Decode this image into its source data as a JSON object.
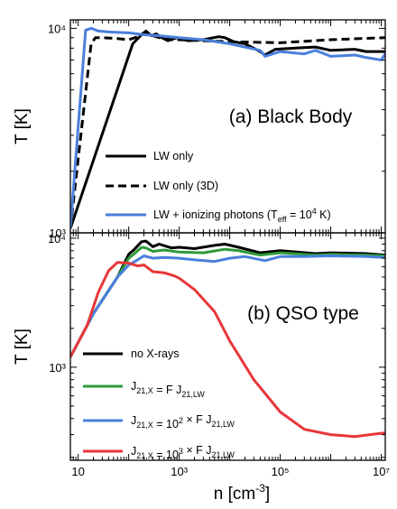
{
  "chart_data": [
    {
      "panel": "a",
      "type": "line",
      "title": "(a) Black Body",
      "xlabel": "n [cm-3]",
      "ylabel": "T [K]",
      "x_scale": "log",
      "y_scale": "log",
      "xlim": [
        7,
        12000000
      ],
      "ylim": [
        1000,
        11000
      ],
      "x_ticks": [
        10,
        1000,
        100000,
        10000000
      ],
      "x_tick_labels": [
        "10",
        "10³",
        "10⁵",
        "10⁷"
      ],
      "y_ticks": [
        1000,
        10000
      ],
      "y_tick_labels": [
        "10³",
        "10⁴"
      ],
      "series": [
        {
          "name": "LW only",
          "color": "#000000",
          "style": "solid",
          "points": [
            [
              7,
              1050
            ],
            [
              120,
              8400
            ],
            [
              180,
              9300
            ],
            [
              220,
              9700
            ],
            [
              280,
              9200
            ],
            [
              350,
              9400
            ],
            [
              450,
              9000
            ],
            [
              600,
              8700
            ],
            [
              900,
              9000
            ],
            [
              1500,
              8700
            ],
            [
              3000,
              8800
            ],
            [
              6000,
              9100
            ],
            [
              8000,
              9000
            ],
            [
              12000,
              8600
            ],
            [
              20000,
              8400
            ],
            [
              40000,
              7700
            ],
            [
              50000,
              7400
            ],
            [
              80000,
              7900
            ],
            [
              200000,
              8000
            ],
            [
              500000,
              8100
            ],
            [
              1000000,
              7800
            ],
            [
              3000000,
              7900
            ],
            [
              5000000,
              7700
            ],
            [
              10000000,
              7700
            ],
            [
              12000000,
              7700
            ]
          ]
        },
        {
          "name": "LW only (3D)",
          "color": "#000000",
          "style": "dashed",
          "points": [
            [
              7,
              1050
            ],
            [
              18,
              8400
            ],
            [
              22,
              9000
            ],
            [
              30,
              9000
            ],
            [
              60,
              8900
            ],
            [
              100,
              8800
            ],
            [
              150,
              9100
            ],
            [
              200,
              9500
            ],
            [
              260,
              9300
            ],
            [
              400,
              9000
            ],
            [
              700,
              8800
            ],
            [
              1000,
              8800
            ],
            [
              3000,
              8700
            ],
            [
              10000,
              8600
            ],
            [
              100000,
              8500
            ],
            [
              1000000,
              8800
            ],
            [
              12000000,
              9000
            ]
          ]
        },
        {
          "name": "LW + ionizing photons (Teff = 10⁴ K)",
          "color": "#4a7fdc",
          "style": "solid",
          "points": [
            [
              7,
              1050
            ],
            [
              14,
              9800
            ],
            [
              18,
              10000
            ],
            [
              25,
              9700
            ],
            [
              40,
              9600
            ],
            [
              100,
              9500
            ],
            [
              200,
              9300
            ],
            [
              400,
              9200
            ],
            [
              1000,
              9000
            ],
            [
              3000,
              8800
            ],
            [
              10000,
              8400
            ],
            [
              40000,
              7800
            ],
            [
              50000,
              7300
            ],
            [
              100000,
              7700
            ],
            [
              300000,
              7500
            ],
            [
              500000,
              7800
            ],
            [
              1000000,
              7300
            ],
            [
              3000000,
              7400
            ],
            [
              5000000,
              7200
            ],
            [
              10000000,
              7000
            ],
            [
              12000000,
              7500
            ]
          ]
        }
      ],
      "legend": [
        {
          "label": "LW only",
          "color": "#000000",
          "style": "solid"
        },
        {
          "label": "LW only (3D)",
          "color": "#000000",
          "style": "dashed"
        },
        {
          "label": "LW + ionizing photons (T",
          "label_sub": "eff",
          "label_mid": " = 10",
          "label_sup": "4",
          "label_end": " K)",
          "color": "#4a7fdc",
          "style": "solid"
        }
      ]
    },
    {
      "panel": "b",
      "type": "line",
      "title": "(b) QSO type",
      "xlabel": "n [cm-3]",
      "ylabel": "T [K]",
      "x_scale": "log",
      "y_scale": "log",
      "xlim": [
        7,
        12000000
      ],
      "ylim": [
        190,
        11000
      ],
      "x_ticks": [
        10,
        1000,
        100000,
        10000000
      ],
      "x_tick_labels": [
        "10",
        "10³",
        "10⁵",
        "10⁷"
      ],
      "y_ticks": [
        1000,
        10000
      ],
      "y_tick_labels": [
        "10³",
        "10⁴"
      ],
      "series": [
        {
          "name": "no X-rays",
          "color": "#000000",
          "points": [
            [
              7,
              1200
            ],
            [
              20,
              2600
            ],
            [
              60,
              5000
            ],
            [
              100,
              7500
            ],
            [
              130,
              8200
            ],
            [
              180,
              9400
            ],
            [
              220,
              9500
            ],
            [
              300,
              8600
            ],
            [
              400,
              9000
            ],
            [
              700,
              8400
            ],
            [
              1000,
              8500
            ],
            [
              2000,
              8300
            ],
            [
              5000,
              8800
            ],
            [
              8000,
              9000
            ],
            [
              15000,
              8500
            ],
            [
              40000,
              7700
            ],
            [
              100000,
              8000
            ],
            [
              500000,
              7600
            ],
            [
              1000000,
              7700
            ],
            [
              5000000,
              7600
            ],
            [
              12000000,
              7400
            ]
          ]
        },
        {
          "name": "J21,X = F J21,LW",
          "color": "#2e9a3a",
          "points": [
            [
              7,
              1200
            ],
            [
              20,
              2600
            ],
            [
              60,
              5000
            ],
            [
              100,
              7000
            ],
            [
              130,
              7600
            ],
            [
              180,
              8500
            ],
            [
              220,
              8400
            ],
            [
              300,
              7900
            ],
            [
              500,
              8100
            ],
            [
              1000,
              7800
            ],
            [
              3000,
              7700
            ],
            [
              8000,
              8200
            ],
            [
              15000,
              8000
            ],
            [
              40000,
              7400
            ],
            [
              100000,
              7700
            ],
            [
              500000,
              7400
            ],
            [
              1000000,
              7500
            ],
            [
              5000000,
              7400
            ],
            [
              12000000,
              7300
            ]
          ]
        },
        {
          "name": "J21,X = 10² × F J21,LW",
          "color": "#4a7fdc",
          "points": [
            [
              7,
              1200
            ],
            [
              20,
              2600
            ],
            [
              60,
              5000
            ],
            [
              100,
              6200
            ],
            [
              150,
              6800
            ],
            [
              200,
              7300
            ],
            [
              300,
              7000
            ],
            [
              500,
              7100
            ],
            [
              1000,
              7000
            ],
            [
              2000,
              6800
            ],
            [
              5000,
              6600
            ],
            [
              10000,
              7000
            ],
            [
              20000,
              7200
            ],
            [
              50000,
              6700
            ],
            [
              100000,
              7200
            ],
            [
              300000,
              7200
            ],
            [
              1000000,
              7300
            ],
            [
              5000000,
              7200
            ],
            [
              12000000,
              7100
            ]
          ]
        },
        {
          "name": "J21,X = 10³ × F J21,LW",
          "color": "#e8373a",
          "points": [
            [
              7,
              1200
            ],
            [
              15,
              2100
            ],
            [
              25,
              3800
            ],
            [
              40,
              5600
            ],
            [
              60,
              6500
            ],
            [
              100,
              6400
            ],
            [
              150,
              6100
            ],
            [
              200,
              6200
            ],
            [
              300,
              5500
            ],
            [
              500,
              5400
            ],
            [
              800,
              5100
            ],
            [
              1000,
              4900
            ],
            [
              2000,
              4000
            ],
            [
              5000,
              2700
            ],
            [
              10000,
              1600
            ],
            [
              30000,
              800
            ],
            [
              100000,
              450
            ],
            [
              300000,
              330
            ],
            [
              1000000,
              300
            ],
            [
              3000000,
              290
            ],
            [
              6000000,
              300
            ],
            [
              12000000,
              310
            ]
          ]
        }
      ],
      "legend": [
        {
          "label": "no X-rays",
          "color": "#000000"
        },
        {
          "label": "J",
          "parts": [
            [
              "J",
              ""
            ],
            [
              "21,X",
              "sub"
            ],
            [
              " = F J",
              ""
            ],
            [
              "21,LW",
              "sub"
            ]
          ],
          "color": "#2e9a3a"
        },
        {
          "label": "J",
          "parts": [
            [
              "J",
              ""
            ],
            [
              "21,X",
              "sub"
            ],
            [
              " = 10",
              ""
            ],
            [
              "2",
              "sup"
            ],
            [
              " × F J",
              ""
            ],
            [
              "21,LW",
              "sub"
            ]
          ],
          "color": "#4a7fdc"
        },
        {
          "label": "J",
          "parts": [
            [
              "J",
              ""
            ],
            [
              "21,X",
              "sub"
            ],
            [
              " = 10",
              ""
            ],
            [
              "3",
              "sup"
            ],
            [
              " × F J",
              ""
            ],
            [
              "21,LW",
              "sub"
            ]
          ],
          "color": "#e8373a"
        }
      ]
    }
  ],
  "xlabel_base": "n [cm",
  "xlabel_sup": "-3",
  "xlabel_end": "]",
  "ylabel_text": "T [K]"
}
